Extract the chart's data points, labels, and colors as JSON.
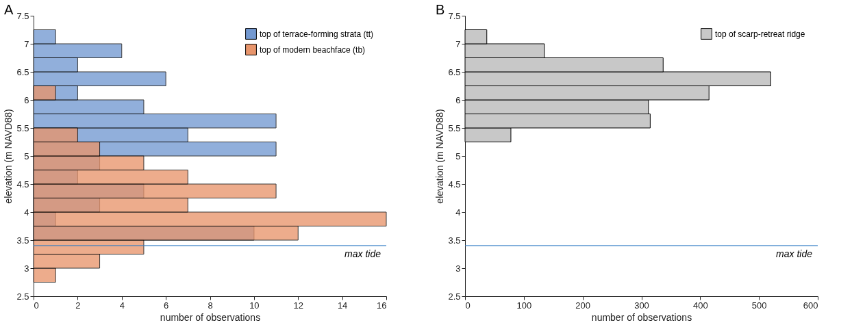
{
  "chart_data": [
    {
      "type": "histogram",
      "title": "A",
      "orientation": "horizontal",
      "xlabel": "number of observations",
      "ylabel": "elevation (m NAVD88)",
      "bins": [
        2.75,
        3,
        3.25,
        3.5,
        3.75,
        4,
        4.25,
        4.5,
        4.75,
        5,
        5.25,
        5.5,
        5.75,
        6,
        6.25,
        6.5,
        6.75,
        7,
        7.25
      ],
      "series": [
        {
          "name": "top of terrace-forming strata (tt)",
          "color": "#7399d1",
          "values": [
            0,
            0,
            0,
            10,
            1,
            3,
            5,
            2,
            3,
            11,
            7,
            11,
            5,
            2,
            6,
            2,
            4,
            1
          ]
        },
        {
          "name": "top of modern beachface (tb)",
          "color": "#e8956c",
          "values": [
            1,
            3,
            5,
            12,
            16,
            7,
            11,
            7,
            5,
            3,
            2,
            0,
            0,
            1,
            0,
            0,
            0,
            0
          ]
        }
      ],
      "xlim": [
        0,
        16
      ],
      "xticks": [
        0,
        2,
        4,
        6,
        8,
        10,
        12,
        14,
        16
      ],
      "ylim": [
        2.5,
        7.5
      ],
      "yticks": [
        2.5,
        3,
        3.5,
        4,
        4.5,
        5,
        5.5,
        6,
        6.5,
        7,
        7.5
      ],
      "ref_lines": [
        {
          "axis": "y",
          "value": 3.4,
          "label": "max tide",
          "color": "#2f7bc4"
        }
      ],
      "legend": "top right",
      "grid": false
    },
    {
      "type": "histogram",
      "title": "B",
      "orientation": "horizontal",
      "xlabel": "number of observations",
      "ylabel": "elevation (m NAVD88)",
      "bins": [
        5.25,
        5.5,
        5.75,
        6,
        6.25,
        6.5,
        6.75,
        7,
        7.25
      ],
      "series": [
        {
          "name": "top of scarp-retreat ridge",
          "color": "#c8c8c8",
          "values": [
            78,
            315,
            312,
            415,
            520,
            337,
            135,
            37
          ]
        }
      ],
      "xlim": [
        0,
        600
      ],
      "xticks": [
        0,
        100,
        200,
        300,
        400,
        500,
        600
      ],
      "ylim": [
        2.5,
        7.5
      ],
      "yticks": [
        2.5,
        3,
        3.5,
        4,
        4.5,
        5,
        5.5,
        6,
        6.5,
        7,
        7.5
      ],
      "ref_lines": [
        {
          "axis": "y",
          "value": 3.4,
          "label": "max tide",
          "color": "#2f7bc4"
        }
      ],
      "legend": "top right",
      "grid": false
    }
  ]
}
